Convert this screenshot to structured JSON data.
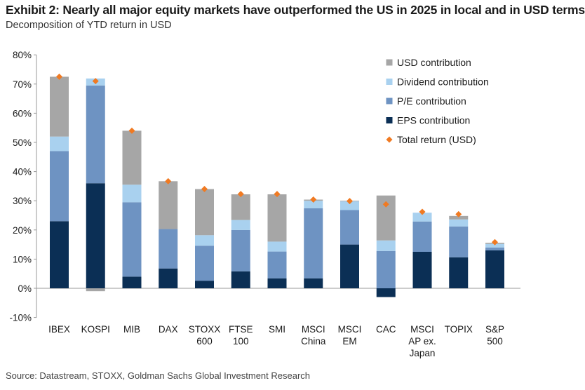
{
  "header": {
    "title": "Exhibit 2: Nearly all major equity markets have outperformed the US in 2025 in local and in USD terms",
    "subtitle": "Decomposition of YTD return in USD"
  },
  "footer": {
    "source": "Source: Datastream, STOXX, Goldman Sachs Global Investment Research"
  },
  "colors": {
    "eps": "#0b2f55",
    "pe": "#6e93c2",
    "dividend": "#a9d1ef",
    "usd": "#a6a6a6",
    "total": "#f07a22",
    "axis": "#999999"
  },
  "chart_data": {
    "type": "bar",
    "stacked": true,
    "title": "Decomposition of YTD return in USD",
    "ylim": [
      -10,
      80
    ],
    "yticks": [
      -10,
      0,
      10,
      20,
      30,
      40,
      50,
      60,
      70,
      80
    ],
    "ytick_labels": [
      "-10%",
      "0%",
      "10%",
      "20%",
      "30%",
      "40%",
      "50%",
      "60%",
      "70%",
      "80%"
    ],
    "grid": false,
    "legend_position": "top-right",
    "categories": [
      [
        "IBEX"
      ],
      [
        "KOSPI"
      ],
      [
        "MIB"
      ],
      [
        "DAX"
      ],
      [
        "STOXX",
        "600"
      ],
      [
        "FTSE",
        "100"
      ],
      [
        "SMI"
      ],
      [
        "MSCI",
        "China"
      ],
      [
        "MSCI",
        "EM"
      ],
      [
        "CAC"
      ],
      [
        "MSCI",
        "AP ex.",
        "Japan"
      ],
      [
        "TOPIX"
      ],
      [
        "S&P",
        "500"
      ]
    ],
    "series": [
      {
        "name": "EPS contribution",
        "key": "eps",
        "values": [
          23,
          36,
          4,
          6.8,
          2.6,
          5.8,
          3.4,
          3.4,
          15,
          -3,
          12.5,
          10.6,
          13
        ]
      },
      {
        "name": "P/E contribution",
        "key": "pe",
        "values": [
          24,
          33.5,
          25.5,
          13.5,
          12,
          14.2,
          9.2,
          24,
          11.8,
          12.8,
          10.4,
          10.6,
          1
        ]
      },
      {
        "name": "Dividend contribution",
        "key": "dividend",
        "values": [
          5,
          2.4,
          6,
          0,
          3.6,
          3.4,
          3.4,
          2.6,
          3,
          3.6,
          3,
          2.4,
          1.2
        ]
      },
      {
        "name": "USD contribution",
        "key": "usd",
        "values": [
          20.5,
          0,
          18.5,
          16.4,
          15.8,
          8.8,
          16.2,
          0.4,
          0.2,
          15.4,
          0,
          1.2,
          0.4
        ]
      }
    ],
    "negative_adjustments": [
      0,
      -1,
      0,
      0,
      0,
      0,
      0,
      0,
      0,
      0,
      0,
      0,
      0
    ],
    "total_return": {
      "name": "Total return (USD)",
      "values": [
        72.5,
        71,
        54,
        36.7,
        34,
        32.3,
        32.3,
        30.4,
        29.9,
        28.8,
        26.2,
        25.4,
        15.8
      ]
    },
    "legend": [
      {
        "label": "USD contribution",
        "key": "usd",
        "marker": "square"
      },
      {
        "label": "Dividend contribution",
        "key": "dividend",
        "marker": "square"
      },
      {
        "label": "P/E contribution",
        "key": "pe",
        "marker": "square"
      },
      {
        "label": "EPS contribution",
        "key": "eps",
        "marker": "square"
      },
      {
        "label": "Total return (USD)",
        "key": "total",
        "marker": "diamond"
      }
    ]
  }
}
